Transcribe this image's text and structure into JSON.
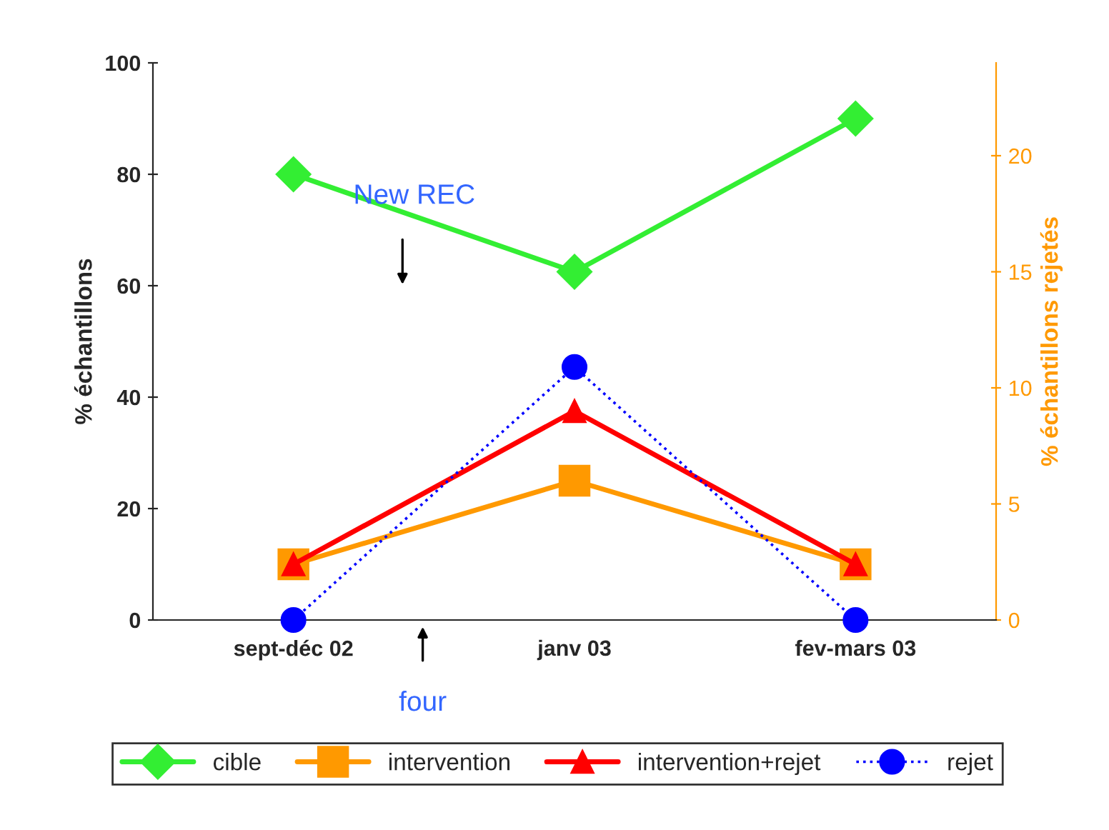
{
  "chart_data": {
    "type": "line",
    "ylabel": "% échantillons",
    "y2label": "% échantillons rejetés",
    "categories": [
      "sept-déc 02",
      "janv 03",
      "fev-mars 03"
    ],
    "series": [
      {
        "name": "cible",
        "color": "#33ee33",
        "values": [
          80,
          62.5,
          90
        ],
        "marker": "diamond",
        "line_style": "solid"
      },
      {
        "name": "intervention",
        "color": "#ff9900",
        "values": [
          10,
          25,
          10
        ],
        "marker": "square",
        "line_style": "solid"
      },
      {
        "name": "intervention+rejet",
        "color": "#ff0000",
        "values": [
          10,
          37.5,
          10
        ],
        "marker": "triangle",
        "line_style": "solid"
      },
      {
        "name": "rejet",
        "color": "#0000ff",
        "values": [
          0,
          10.9,
          0
        ],
        "marker": "circle",
        "line_style": "dotted",
        "axis": "y2"
      }
    ],
    "ylim": [
      0,
      100
    ],
    "yticks": [
      0,
      20,
      40,
      60,
      80,
      100
    ],
    "y2lim": [
      0,
      24
    ],
    "y2ticks": [
      0,
      5,
      10,
      15,
      20
    ],
    "annotations": [
      "New REC",
      "four"
    ],
    "grid": false,
    "legend": "bottom"
  }
}
